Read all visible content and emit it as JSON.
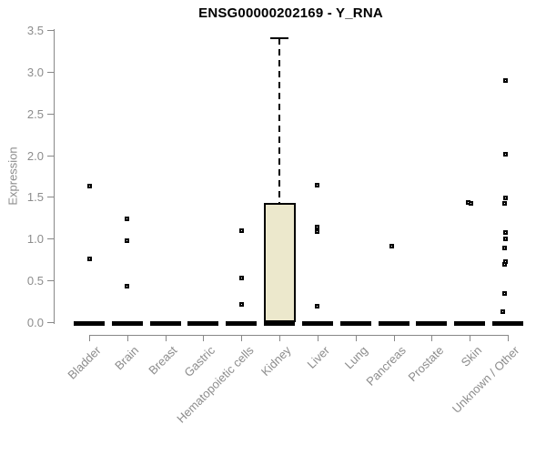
{
  "title": "ENSG00000202169 - Y_RNA",
  "y_axis": {
    "label": "Expression",
    "ticks": [
      "0.0",
      "0.5",
      "1.0",
      "1.5",
      "2.0",
      "2.5",
      "3.0",
      "3.5"
    ]
  },
  "chart_data": {
    "type": "boxplot",
    "title": "ENSG00000202169 - Y_RNA",
    "xlabel": "",
    "ylabel": "Expression",
    "ylim": [
      0,
      3.5
    ],
    "grid": false,
    "legend": false,
    "categories": [
      "Bladder",
      "Brain",
      "Breast",
      "Gastric",
      "Hematopoietic cells",
      "Kidney",
      "Liver",
      "Lung",
      "Pancreas",
      "Prostate",
      "Skin",
      "Unknown / Other"
    ],
    "series": [
      {
        "name": "Bladder",
        "median": 0,
        "points": [
          1.63,
          0.76
        ],
        "point_dx": [
          0,
          0
        ]
      },
      {
        "name": "Brain",
        "median": 0,
        "points": [
          1.24,
          0.98,
          0.43
        ],
        "point_dx": [
          0,
          0,
          0
        ]
      },
      {
        "name": "Breast",
        "median": 0,
        "points": [],
        "point_dx": []
      },
      {
        "name": "Gastric",
        "median": 0,
        "points": [],
        "point_dx": []
      },
      {
        "name": "Hematopoietic cells",
        "median": 0,
        "points": [
          1.1,
          0.53,
          0.21
        ],
        "point_dx": [
          0,
          0,
          0
        ]
      },
      {
        "name": "Kidney",
        "median": 0,
        "q1": 0.0,
        "q3": 1.43,
        "whisker_high": 3.4,
        "points": [],
        "point_dx": []
      },
      {
        "name": "Liver",
        "median": 0,
        "points": [
          1.64,
          1.14,
          1.08,
          0.19
        ],
        "point_dx": [
          0,
          0,
          0,
          0
        ]
      },
      {
        "name": "Lung",
        "median": 0,
        "points": [],
        "point_dx": []
      },
      {
        "name": "Pancreas",
        "median": 0,
        "points": [
          0.91
        ],
        "point_dx": [
          -2
        ]
      },
      {
        "name": "Prostate",
        "median": 0,
        "points": [],
        "point_dx": []
      },
      {
        "name": "Skin",
        "median": 0,
        "points": [
          1.43,
          1.42
        ],
        "point_dx": [
          -2,
          1
        ]
      },
      {
        "name": "Unknown / Other",
        "median": 0,
        "points": [
          2.9,
          2.01,
          1.49,
          1.42,
          1.07,
          1.0,
          0.89,
          0.73,
          0.69,
          0.34,
          0.13
        ],
        "point_dx": [
          -3,
          -3,
          -3,
          -4,
          -3,
          -3,
          -4,
          -3,
          -4,
          -4,
          -6
        ]
      }
    ],
    "colors": {
      "box_fill": "#ece8cc",
      "box_border": "#000000",
      "median": "#000000",
      "point": "#000000",
      "axis": "#888888",
      "tick_label": "#8c8c8c",
      "title": "#000000"
    }
  }
}
